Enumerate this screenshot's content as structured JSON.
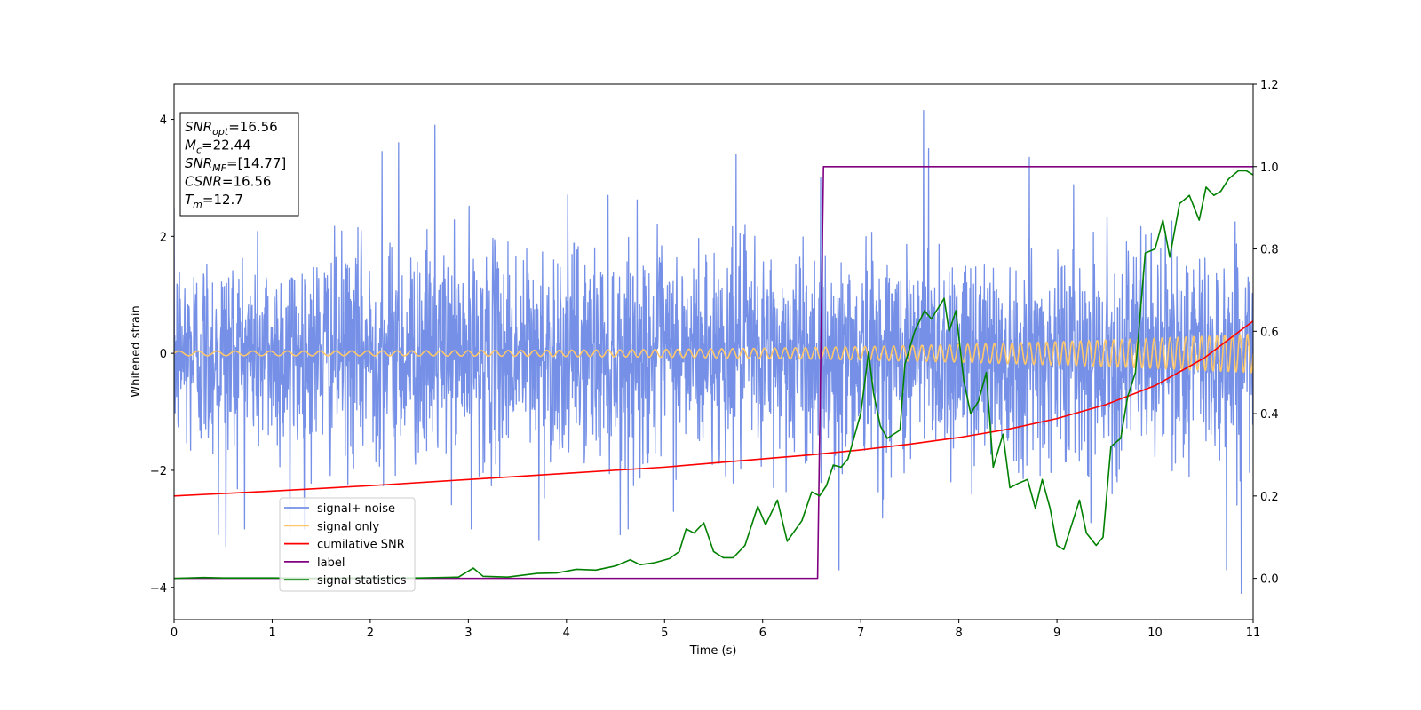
{
  "chart_data": {
    "type": "line",
    "xlabel": "Time (s)",
    "ylabel": "Whitened strain",
    "xlim": [
      0,
      11
    ],
    "ylim": [
      -4.55,
      4.6
    ],
    "y2lim": [
      -0.1,
      1.2
    ],
    "xticks": [
      "0",
      "1",
      "2",
      "3",
      "4",
      "5",
      "6",
      "7",
      "8",
      "9",
      "10",
      "11"
    ],
    "yticks": [
      "-4",
      "-2",
      "0",
      "2",
      "4"
    ],
    "y2ticks": [
      "0.0",
      "0.2",
      "0.4",
      "0.6",
      "0.8",
      "1.0",
      "1.2"
    ],
    "legend_position": "lower-left",
    "grid": false,
    "info_box": {
      "position": "top-left",
      "lines": [
        {
          "var": "SNR",
          "sub": "opt",
          "value": "=16.56"
        },
        {
          "var": "M",
          "sub": "c",
          "value": "=22.44"
        },
        {
          "var": "SNR",
          "sub": "MF",
          "value": "=[14.77]"
        },
        {
          "var": "CSNR",
          "sub": "",
          "value": "=16.56"
        },
        {
          "var": "T",
          "sub": "m",
          "value": "=12.7"
        }
      ]
    },
    "series": [
      {
        "name": "signal+ noise",
        "color": "#7590e6",
        "axis": "left",
        "kind": "noise",
        "std": 0.9,
        "spikes": [
          [
            0.45,
            -3.1
          ],
          [
            0.53,
            -3.3
          ],
          [
            1.18,
            -3.1
          ],
          [
            2.12,
            3.45
          ],
          [
            2.29,
            3.6
          ],
          [
            2.66,
            3.9
          ],
          [
            3.03,
            -3.0
          ],
          [
            3.72,
            -3.2
          ],
          [
            4.55,
            -3.1
          ],
          [
            5.73,
            3.4
          ],
          [
            6.78,
            -3.7
          ],
          [
            7.64,
            4.15
          ],
          [
            7.69,
            3.5
          ],
          [
            8.72,
            3.35
          ],
          [
            10.73,
            -3.7
          ],
          [
            10.88,
            -4.1
          ]
        ]
      },
      {
        "name": "signal only",
        "color": "#ffc76b",
        "axis": "left",
        "kind": "chirp",
        "amp_start": 0.04,
        "amp_end": 0.33,
        "freq_start": 5.0,
        "freq_end": 13.0
      },
      {
        "name": "cumilative SNR",
        "color": "#ff0000",
        "axis": "right",
        "x": [
          0,
          1,
          2,
          3,
          4,
          5,
          6,
          6.5,
          7,
          7.5,
          8,
          8.5,
          9,
          9.5,
          10,
          10.5,
          11
        ],
        "y": [
          0.2,
          0.212,
          0.225,
          0.24,
          0.255,
          0.27,
          0.29,
          0.3,
          0.312,
          0.326,
          0.342,
          0.362,
          0.388,
          0.422,
          0.468,
          0.535,
          0.625
        ]
      },
      {
        "name": "label",
        "color": "#800080",
        "axis": "right",
        "x": [
          0,
          6.56,
          6.62,
          11
        ],
        "y": [
          0,
          0,
          1,
          1
        ]
      },
      {
        "name": "signal statistics",
        "color": "#008000",
        "axis": "right",
        "x": [
          0,
          0.3,
          0.5,
          1.0,
          1.5,
          2.0,
          2.5,
          2.9,
          3.05,
          3.15,
          3.4,
          3.7,
          3.9,
          4.1,
          4.3,
          4.5,
          4.65,
          4.75,
          4.9,
          5.05,
          5.15,
          5.22,
          5.3,
          5.4,
          5.5,
          5.6,
          5.7,
          5.82,
          5.95,
          6.03,
          6.15,
          6.25,
          6.4,
          6.5,
          6.58,
          6.65,
          6.72,
          6.8,
          6.87,
          7.0,
          7.08,
          7.13,
          7.2,
          7.27,
          7.4,
          7.45,
          7.55,
          7.65,
          7.72,
          7.85,
          7.9,
          7.97,
          8.05,
          8.12,
          8.2,
          8.28,
          8.35,
          8.45,
          8.52,
          8.6,
          8.7,
          8.78,
          8.85,
          8.93,
          9.0,
          9.07,
          9.15,
          9.23,
          9.3,
          9.4,
          9.47,
          9.55,
          9.65,
          9.72,
          9.8,
          9.9,
          10.0,
          10.08,
          10.15,
          10.25,
          10.35,
          10.45,
          10.52,
          10.6,
          10.67,
          10.75,
          10.85,
          10.93,
          11.0
        ],
        "y": [
          0.0,
          0.002,
          0.001,
          0.001,
          0.0,
          0.001,
          0.001,
          0.003,
          0.025,
          0.005,
          0.003,
          0.012,
          0.013,
          0.022,
          0.02,
          0.03,
          0.045,
          0.033,
          0.038,
          0.048,
          0.065,
          0.12,
          0.11,
          0.135,
          0.065,
          0.05,
          0.05,
          0.08,
          0.175,
          0.13,
          0.19,
          0.09,
          0.14,
          0.21,
          0.2,
          0.225,
          0.275,
          0.27,
          0.29,
          0.4,
          0.55,
          0.45,
          0.37,
          0.34,
          0.36,
          0.52,
          0.6,
          0.65,
          0.63,
          0.68,
          0.6,
          0.65,
          0.48,
          0.4,
          0.43,
          0.5,
          0.27,
          0.35,
          0.22,
          0.23,
          0.24,
          0.17,
          0.24,
          0.17,
          0.08,
          0.07,
          0.13,
          0.19,
          0.11,
          0.08,
          0.1,
          0.32,
          0.34,
          0.44,
          0.5,
          0.79,
          0.8,
          0.87,
          0.78,
          0.91,
          0.93,
          0.87,
          0.95,
          0.93,
          0.94,
          0.97,
          0.99,
          0.99,
          0.98
        ]
      }
    ]
  }
}
